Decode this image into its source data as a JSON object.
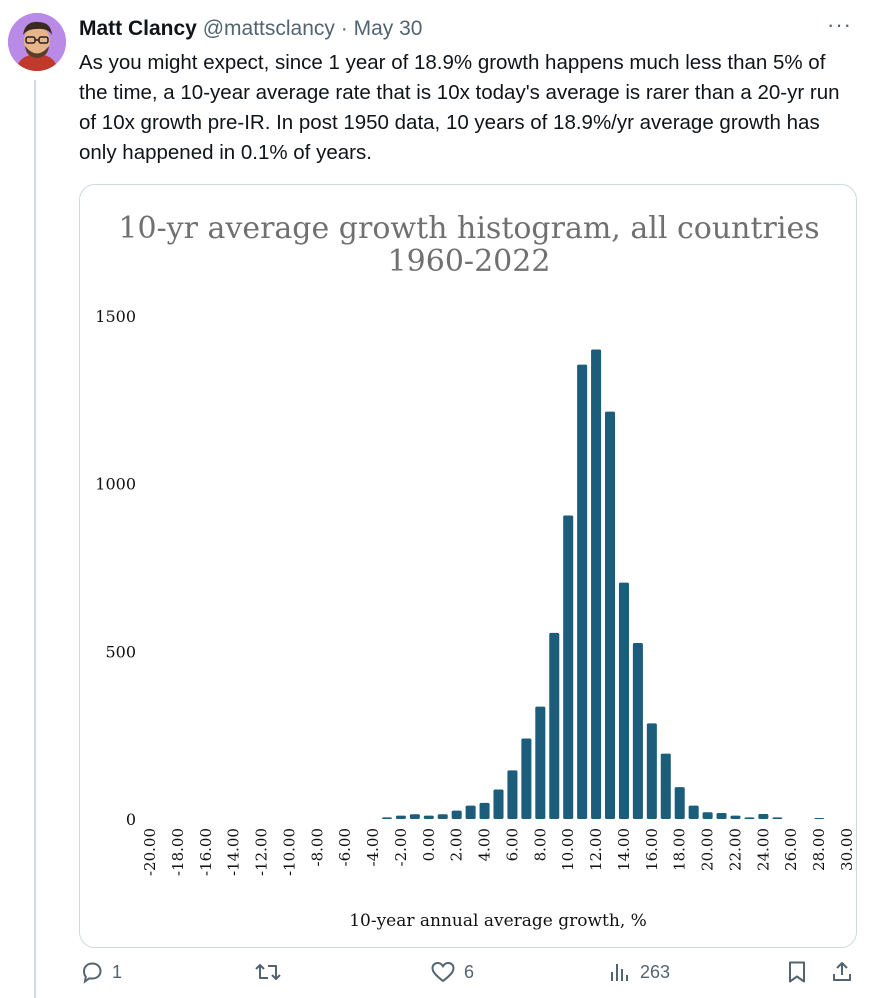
{
  "tweet": {
    "author_name": "Matt Clancy",
    "handle": "@mattsclancy",
    "separator": "·",
    "date": "May 30",
    "more_label": "···",
    "text": "As you might expect, since 1 year of 18.9% growth happens much less than 5% of the time, a 10-year average rate that is 10x today's average is rarer than a 20-yr run of 10x growth pre-IR. In post 1950 data, 10 years of 18.9%/yr average growth has only happened in 0.1% of years."
  },
  "actions": {
    "replies": "1",
    "likes": "6",
    "views": "263"
  },
  "colors": {
    "bar": "#1c5d7c",
    "secondary_text": "#536471"
  },
  "chart_data": {
    "type": "bar",
    "title_line1": "10-yr average growth histogram, all countries",
    "title_line2": "1960-2022",
    "xlabel": "10-year annual average growth, %",
    "ylabel": "",
    "ylim": [
      0,
      1500
    ],
    "yticks": [
      0,
      500,
      1000,
      1500
    ],
    "xtick_labels": [
      "-20.00",
      "-18.00",
      "-16.00",
      "-14.00",
      "-12.00",
      "-10.00",
      "-8.00",
      "-6.00",
      "-4.00",
      "-2.00",
      "0.00",
      "2.00",
      "4.00",
      "6.00",
      "8.00",
      "10.00",
      "12.00",
      "14.00",
      "16.00",
      "18.00",
      "20.00",
      "22.00",
      "24.00",
      "26.00",
      "28.00",
      "30.00"
    ],
    "categories": [
      -20,
      -19,
      -18,
      -17,
      -16,
      -15,
      -14,
      -13,
      -12,
      -11,
      -10,
      -9,
      -8,
      -7,
      -6,
      -5,
      -4,
      -3,
      -2,
      -1,
      0,
      1,
      2,
      3,
      4,
      5,
      6,
      7,
      8,
      9,
      10,
      11,
      12,
      13,
      14,
      15,
      16,
      17,
      18,
      19,
      20,
      21,
      22,
      23,
      24,
      25,
      26,
      27,
      28,
      29,
      30
    ],
    "values": [
      0,
      0,
      0,
      0,
      0,
      0,
      0,
      0,
      0,
      0,
      0,
      0,
      0,
      0,
      0,
      0,
      0,
      5,
      10,
      14,
      10,
      14,
      25,
      40,
      48,
      88,
      145,
      240,
      335,
      555,
      905,
      1355,
      1400,
      1215,
      705,
      525,
      285,
      195,
      95,
      40,
      20,
      18,
      10,
      5,
      15,
      5,
      0,
      0,
      3,
      0,
      0
    ]
  }
}
